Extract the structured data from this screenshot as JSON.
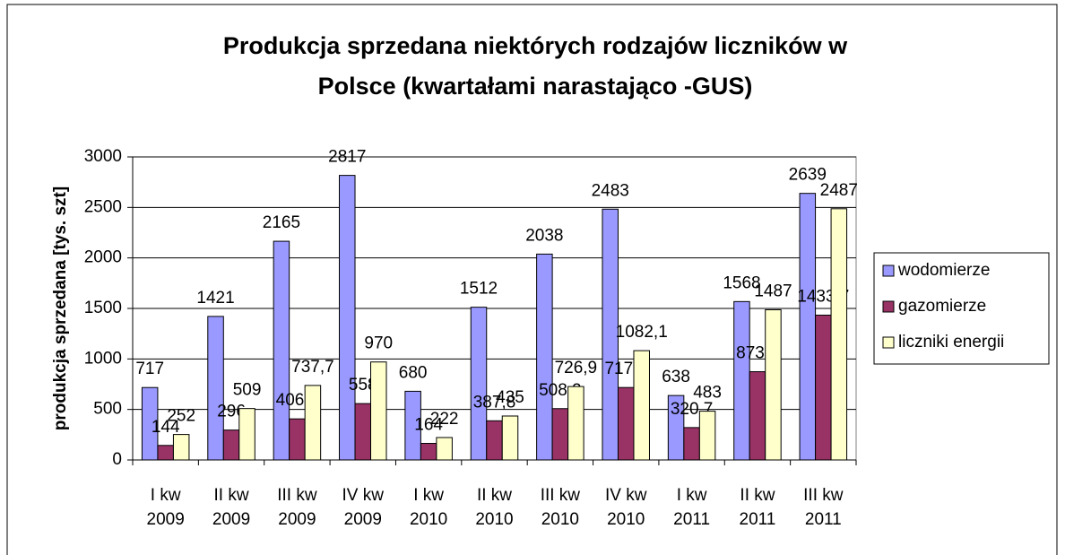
{
  "chart_data": {
    "type": "bar",
    "title": [
      "Produkcja sprzedana niektórych rodzajów liczników w",
      "Polsce (kwartałami narastająco -GUS)"
    ],
    "ylabel": "produkcja sprzedana [tys. szt]",
    "categories": [
      [
        "I kw",
        "2009"
      ],
      [
        "II kw",
        "2009"
      ],
      [
        "III kw",
        "2009"
      ],
      [
        "IV kw",
        "2009"
      ],
      [
        "I kw",
        "2010"
      ],
      [
        "II kw",
        "2010"
      ],
      [
        "III kw",
        "2010"
      ],
      [
        "IV kw",
        "2010"
      ],
      [
        "I kw",
        "2011"
      ],
      [
        "II kw",
        "2011"
      ],
      [
        "III kw",
        "2011"
      ]
    ],
    "series": [
      {
        "name": "wodomierze",
        "color": "#9999ff",
        "values": [
          717,
          1421,
          2165,
          2817,
          680,
          1512,
          2038,
          2483,
          638,
          1568,
          2639
        ],
        "value_labels": [
          "717",
          "1421",
          "2165",
          "2817",
          "680",
          "1512",
          "2038",
          "2483",
          "638",
          "1568",
          "2639"
        ]
      },
      {
        "name": "gazomierze",
        "color": "#993366",
        "values": [
          144,
          296,
          406.7,
          558,
          164,
          387.8,
          508.2,
          717.3,
          320.7,
          873.7,
          1433.7
        ],
        "value_labels": [
          "144",
          "296",
          "406,7",
          "558",
          "164",
          "387,8",
          "508,2",
          "717,3",
          "320,7",
          "873,7",
          "1433,7"
        ]
      },
      {
        "name": "liczniki energii",
        "color": "#ffffcc",
        "values": [
          252,
          509,
          737.7,
          970,
          222,
          435,
          726.9,
          1082.1,
          483,
          1487,
          2487
        ],
        "value_labels": [
          "252",
          "509",
          "737,7",
          "970",
          "222",
          "435",
          "726,9",
          "1082,1",
          "483",
          "1487",
          "2487"
        ]
      }
    ],
    "ylim": [
      0,
      3000
    ],
    "yticks": [
      0,
      500,
      1000,
      1500,
      2000,
      2500,
      3000
    ],
    "grid": true,
    "legend": "right"
  }
}
